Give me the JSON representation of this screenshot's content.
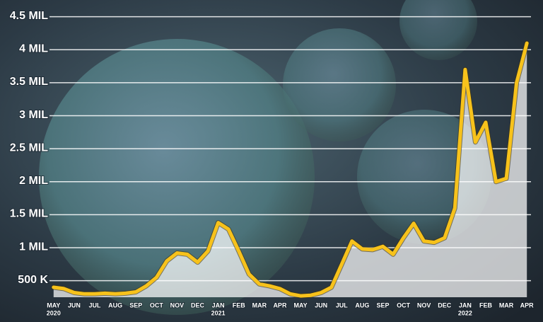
{
  "chart_data": {
    "type": "line",
    "categories": [
      "MAY",
      "JUN",
      "JUL",
      "AUG",
      "SEP",
      "OCT",
      "NOV",
      "DEC",
      "JAN",
      "FEB",
      "MAR",
      "APR",
      "MAY",
      "JUN",
      "JUL",
      "AUG",
      "SEP",
      "OCT",
      "NOV",
      "DEC",
      "JAN",
      "FEB",
      "MAR",
      "APR"
    ],
    "years": [
      "2020",
      null,
      null,
      null,
      null,
      null,
      null,
      null,
      "2021",
      null,
      null,
      null,
      null,
      null,
      null,
      null,
      null,
      null,
      null,
      null,
      "2022",
      null,
      null,
      null
    ],
    "x": [
      0,
      0.5,
      1,
      1.5,
      2,
      2.5,
      3,
      3.5,
      4,
      4.5,
      5,
      5.5,
      6,
      6.5,
      7,
      7.5,
      8,
      8.5,
      9,
      9.5,
      10,
      10.5,
      11,
      11.5,
      12,
      12.5,
      13,
      13.5,
      14,
      14.5,
      15,
      15.5,
      16,
      16.5,
      17,
      17.5,
      18,
      18.5,
      19,
      19.5,
      20,
      20.5,
      21,
      21.5,
      22,
      22.5,
      23
    ],
    "series": [
      {
        "color": "#f7c21b",
        "values": [
          400000,
          380000,
          320000,
          300000,
          300000,
          310000,
          300000,
          310000,
          330000,
          420000,
          550000,
          800000,
          920000,
          900000,
          780000,
          950000,
          1380000,
          1280000,
          950000,
          600000,
          450000,
          420000,
          380000,
          300000,
          270000,
          280000,
          320000,
          400000,
          750000,
          1100000,
          980000,
          970000,
          1020000,
          900000,
          1150000,
          1370000,
          1100000,
          1080000,
          1150000,
          1600000,
          3700000,
          2600000,
          2900000,
          2000000,
          2050000,
          3500000,
          4100000
        ]
      }
    ],
    "xlim": [
      -0.2,
      23.2
    ],
    "ylim": [
      250000,
      4700000
    ],
    "yticks": [
      {
        "value": 500000,
        "label": "500 K"
      },
      {
        "value": 1000000,
        "label": "1 MIL"
      },
      {
        "value": 1500000,
        "label": "1.5 MIL"
      },
      {
        "value": 2000000,
        "label": "2 MIL"
      },
      {
        "value": 2500000,
        "label": "2.5 MIL"
      },
      {
        "value": 3000000,
        "label": "3 MIL"
      },
      {
        "value": 3500000,
        "label": "3.5 MIL"
      },
      {
        "value": 4000000,
        "label": "4 MIL"
      },
      {
        "value": 4500000,
        "label": "4.5 MIL"
      }
    ],
    "grid": true
  }
}
